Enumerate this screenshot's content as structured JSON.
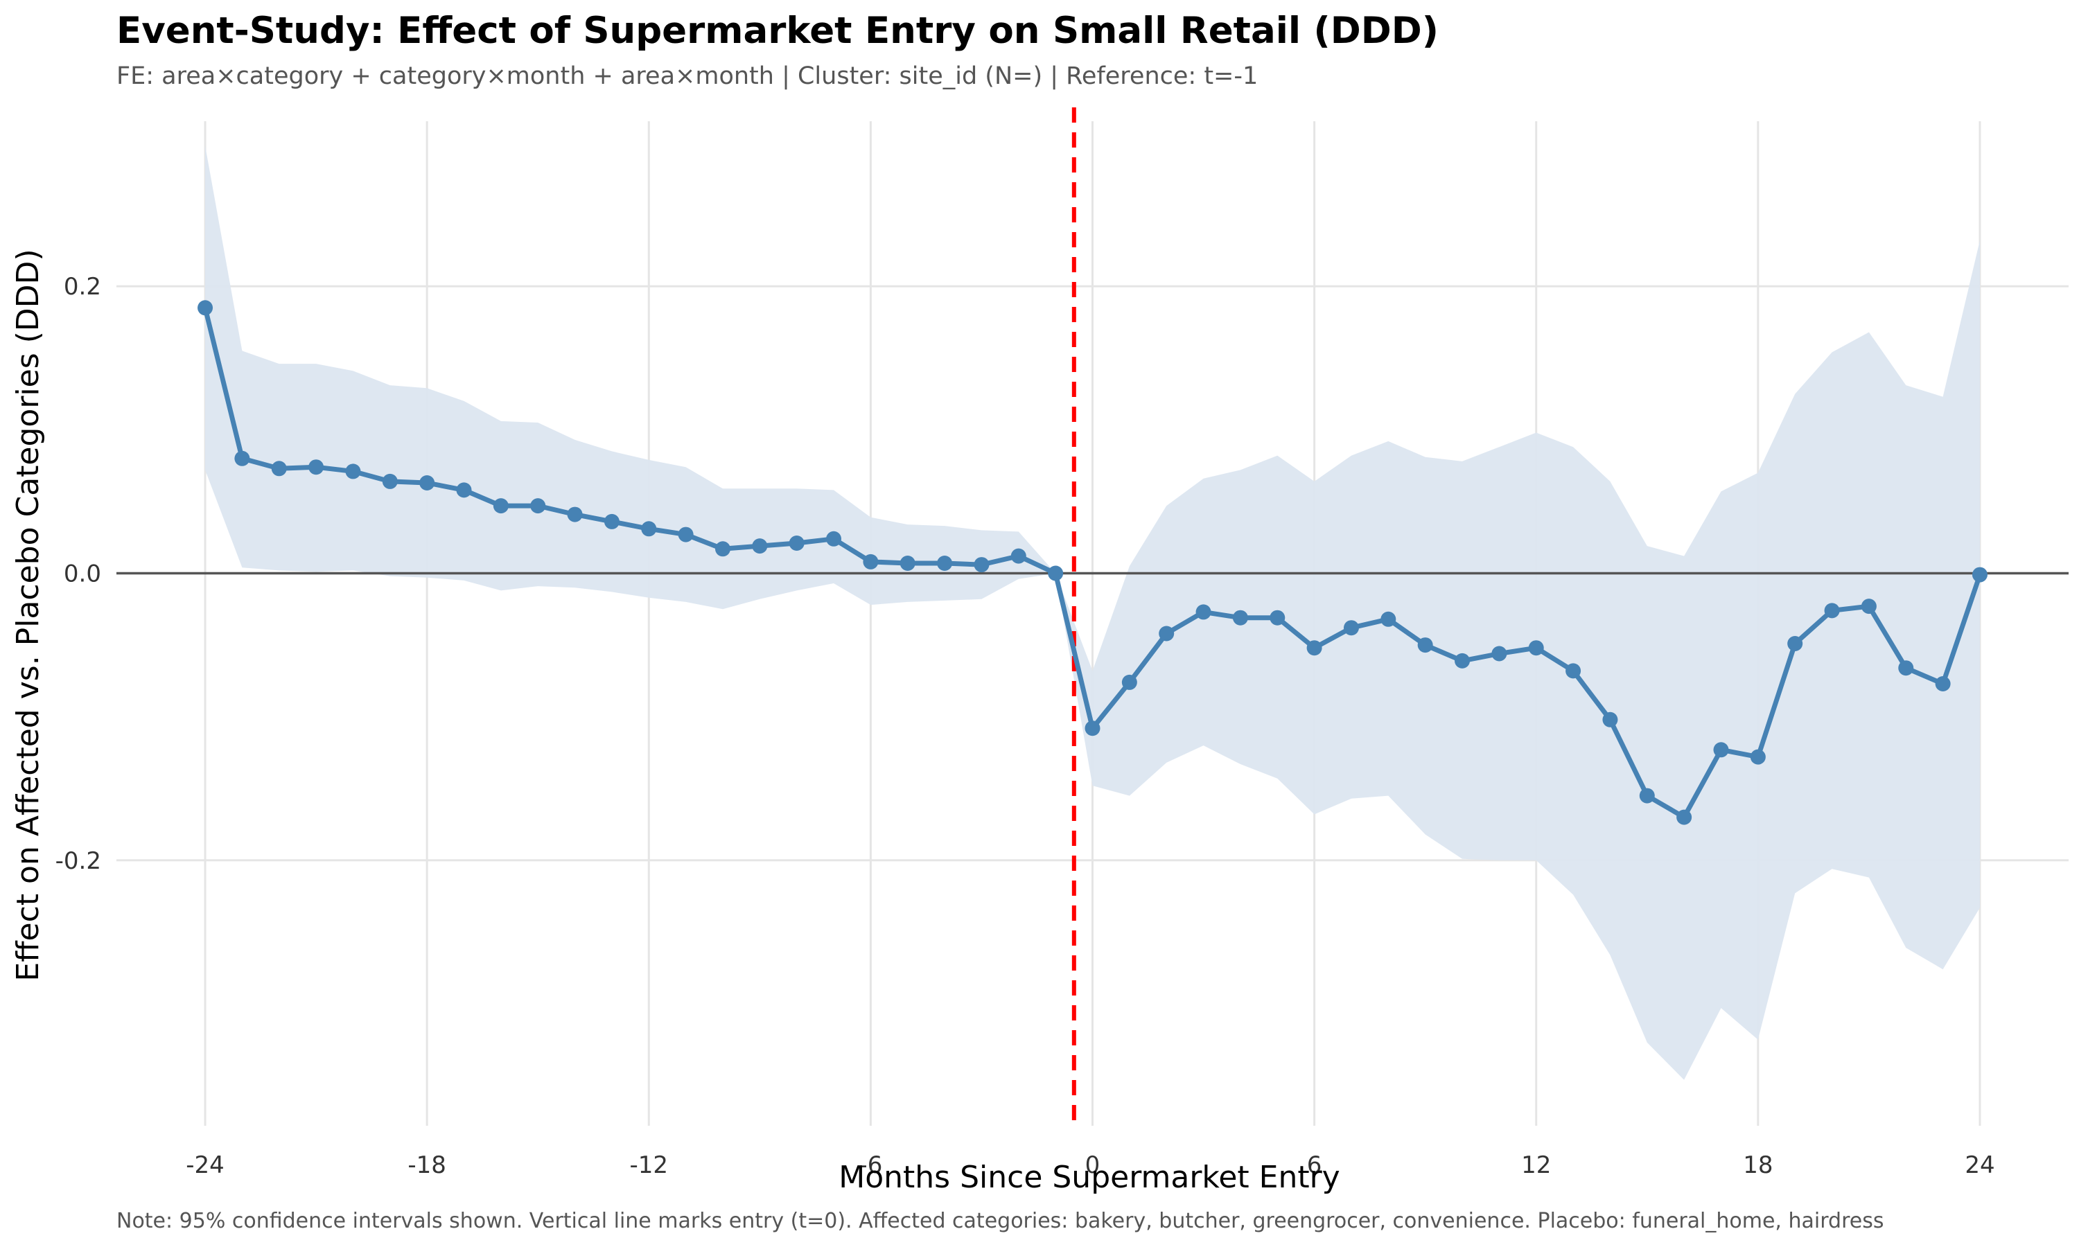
{
  "chart_data": {
    "type": "line",
    "title": "Event-Study: Effect of Supermarket Entry on Small Retail (DDD)",
    "subtitle": "FE: area×category + category×month + area×month | Cluster: site_id (N=) | Reference: t=-1",
    "xlabel": "Months Since Supermarket Entry",
    "ylabel": "Effect on Affected vs. Placebo Categories (DDD)",
    "caption": "Note: 95% confidence intervals shown. Vertical line marks entry (t=0). Affected categories: bakery, butcher, greengrocer, convenience. Placebo: funeral_home, hairdress",
    "xlim": [
      -26.4,
      26.4
    ],
    "ylim": [
      -0.385,
      0.315
    ],
    "x_ticks": [
      -24,
      -18,
      -12,
      -6,
      0,
      6,
      12,
      18,
      24
    ],
    "x_tick_labels": [
      "-24",
      "-18",
      "-12",
      "-6",
      "0",
      "6",
      "12",
      "18",
      "24"
    ],
    "y_ticks": [
      0.2,
      0.0,
      -0.2
    ],
    "y_tick_labels": [
      "0.2",
      "0.0",
      "-0.2"
    ],
    "reference_line_y": 0,
    "entry_line_x": -0.5,
    "grid": true,
    "colors": {
      "line": "#4682b4",
      "ci_band": "#dce6f0",
      "entry_line": "#ff0000",
      "zero_line": "#555555",
      "grid": "#e5e5e5"
    },
    "series": [
      {
        "x": [
          -24,
          -23,
          -22,
          -21,
          -20,
          -19,
          -18,
          -17,
          -16,
          -15,
          -14,
          -13,
          -12,
          -11,
          -10,
          -9,
          -8,
          -7,
          -6,
          -5,
          -4,
          -3,
          -2,
          -1,
          0,
          1,
          2,
          3,
          4,
          5,
          6,
          7,
          8,
          9,
          10,
          11,
          12,
          13,
          14,
          15,
          16,
          17,
          18,
          19,
          20,
          21,
          22,
          23,
          24
        ],
        "estimate": [
          0.185,
          0.08,
          0.073,
          0.074,
          0.071,
          0.064,
          0.063,
          0.058,
          0.047,
          0.047,
          0.041,
          0.036,
          0.031,
          0.027,
          0.017,
          0.019,
          0.021,
          0.024,
          0.008,
          0.007,
          0.007,
          0.006,
          0.012,
          0.0,
          -0.108,
          -0.076,
          -0.042,
          -0.027,
          -0.031,
          -0.031,
          -0.052,
          -0.038,
          -0.032,
          -0.05,
          -0.061,
          -0.056,
          -0.052,
          -0.068,
          -0.102,
          -0.155,
          -0.17,
          -0.123,
          -0.128,
          -0.049,
          -0.026,
          -0.023,
          -0.066,
          -0.077,
          -0.001
        ],
        "ci_lower": [
          0.072,
          0.004,
          0.002,
          0.001,
          0.002,
          -0.002,
          -0.003,
          -0.005,
          -0.012,
          -0.009,
          -0.01,
          -0.013,
          -0.017,
          -0.02,
          -0.025,
          -0.018,
          -0.012,
          -0.007,
          -0.022,
          -0.02,
          -0.019,
          -0.018,
          -0.004,
          0.0,
          -0.148,
          -0.155,
          -0.132,
          -0.12,
          -0.133,
          -0.143,
          -0.168,
          -0.157,
          -0.155,
          -0.182,
          -0.199,
          -0.2,
          -0.2,
          -0.224,
          -0.266,
          -0.327,
          -0.353,
          -0.303,
          -0.325,
          -0.223,
          -0.206,
          -0.212,
          -0.261,
          -0.276,
          -0.233
        ],
        "ci_upper": [
          0.298,
          0.155,
          0.146,
          0.146,
          0.141,
          0.131,
          0.129,
          0.12,
          0.106,
          0.105,
          0.093,
          0.085,
          0.079,
          0.074,
          0.059,
          0.059,
          0.059,
          0.058,
          0.039,
          0.034,
          0.033,
          0.03,
          0.029,
          0.0,
          -0.068,
          0.005,
          0.047,
          0.066,
          0.072,
          0.082,
          0.064,
          0.082,
          0.092,
          0.081,
          0.078,
          0.088,
          0.098,
          0.088,
          0.064,
          0.019,
          0.012,
          0.057,
          0.07,
          0.125,
          0.154,
          0.168,
          0.131,
          0.123,
          0.232
        ]
      }
    ]
  }
}
